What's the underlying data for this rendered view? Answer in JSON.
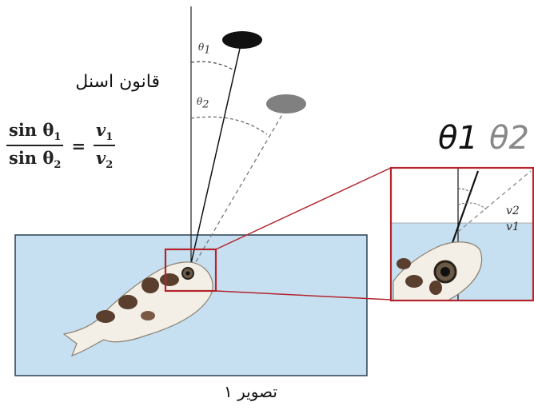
{
  "law_title": "قانون اسنل",
  "formula": {
    "num_left": "sin θ",
    "num_left_sub": "1",
    "den_left": "sin θ",
    "den_left_sub": "2",
    "equals": "=",
    "num_right": "v",
    "num_right_sub": "1",
    "den_right": "v",
    "den_right_sub": "2"
  },
  "angles": {
    "theta1": "θ",
    "theta1_sub": "1",
    "theta2": "θ",
    "theta2_sub": "2"
  },
  "zoom_labels": {
    "theta1": "θ1",
    "theta2": "θ2",
    "v2": "v2",
    "v1": "v1"
  },
  "caption": "تصویر ۱",
  "colors": {
    "water": "#c6e0f1",
    "frame": "#b3242c",
    "target_primary": "#111111",
    "target_image": "#808080"
  }
}
